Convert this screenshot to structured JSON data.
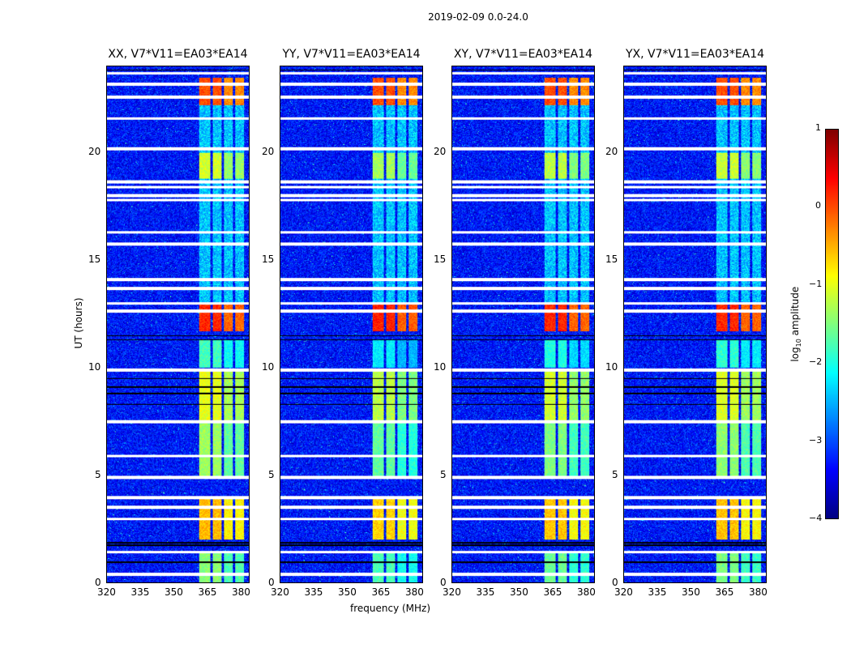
{
  "chart_data": {
    "type": "heatmap",
    "title": "2019-02-09 0.0-24.0",
    "xlabel": "frequency (MHz)",
    "ylabel": "UT (hours)",
    "xlim": [
      320,
      384
    ],
    "ylim": [
      0,
      24
    ],
    "xticks": [
      "320",
      "335",
      "350",
      "365",
      "380"
    ],
    "yticks": [
      "0",
      "5",
      "10",
      "15",
      "20"
    ],
    "colormap": "jet",
    "colorbar": {
      "label": "log10 amplitude",
      "range": [
        -4,
        1
      ],
      "ticks": [
        "1",
        "0",
        "−1",
        "−2",
        "−3",
        "−4"
      ]
    },
    "panels": [
      {
        "title": "XX, V7*V11=EA03*EA14",
        "strength": 0.9
      },
      {
        "title": "YY, V7*V11=EA03*EA14",
        "strength": 1.1
      },
      {
        "title": "XY, V7*V11=EA03*EA14",
        "strength": 1.0
      },
      {
        "title": "YX, V7*V11=EA03*EA14",
        "strength": 0.95
      }
    ],
    "background_log_amplitude": -3.3,
    "rfi_subbands_mhz": [
      [
        361.5,
        366.5
      ],
      [
        367.5,
        371.5
      ],
      [
        372.5,
        376.5
      ],
      [
        377.5,
        381.5
      ]
    ],
    "rfi_epochs": [
      {
        "hours": [
          22.2,
          23.5
        ],
        "log_amplitude": 0.0
      },
      {
        "hours": [
          18.8,
          20.0
        ],
        "log_amplitude": -1.2
      },
      {
        "hours": [
          11.7,
          13.0
        ],
        "log_amplitude": 0.2
      },
      {
        "hours": [
          10.0,
          11.3
        ],
        "log_amplitude": -2.0
      },
      {
        "hours": [
          7.5,
          9.9
        ],
        "log_amplitude": -1.1
      },
      {
        "hours": [
          4.9,
          7.5
        ],
        "log_amplitude": -1.5
      },
      {
        "hours": [
          2.0,
          4.0
        ],
        "log_amplitude": -0.6
      },
      {
        "hours": [
          0.0,
          1.5
        ],
        "log_amplitude": -1.6
      },
      {
        "hours": [
          13.0,
          18.8
        ],
        "log_amplitude": -2.3
      },
      {
        "hours": [
          20.0,
          22.2
        ],
        "log_amplitude": -2.2
      }
    ],
    "flagged_hours": [
      23.7,
      23.2,
      22.6,
      21.6,
      20.2,
      18.65,
      18.4,
      18.0,
      17.8,
      16.3,
      15.75,
      14.1,
      13.7,
      13.0,
      12.65,
      9.9,
      7.5,
      5.9,
      4.9,
      3.95,
      3.5,
      2.97,
      1.43,
      0.4
    ],
    "dropout_hours": [
      23.85,
      20.25,
      11.5,
      11.3,
      9.5,
      9.1,
      8.8,
      8.3,
      1.85,
      1.75,
      0.95
    ]
  }
}
